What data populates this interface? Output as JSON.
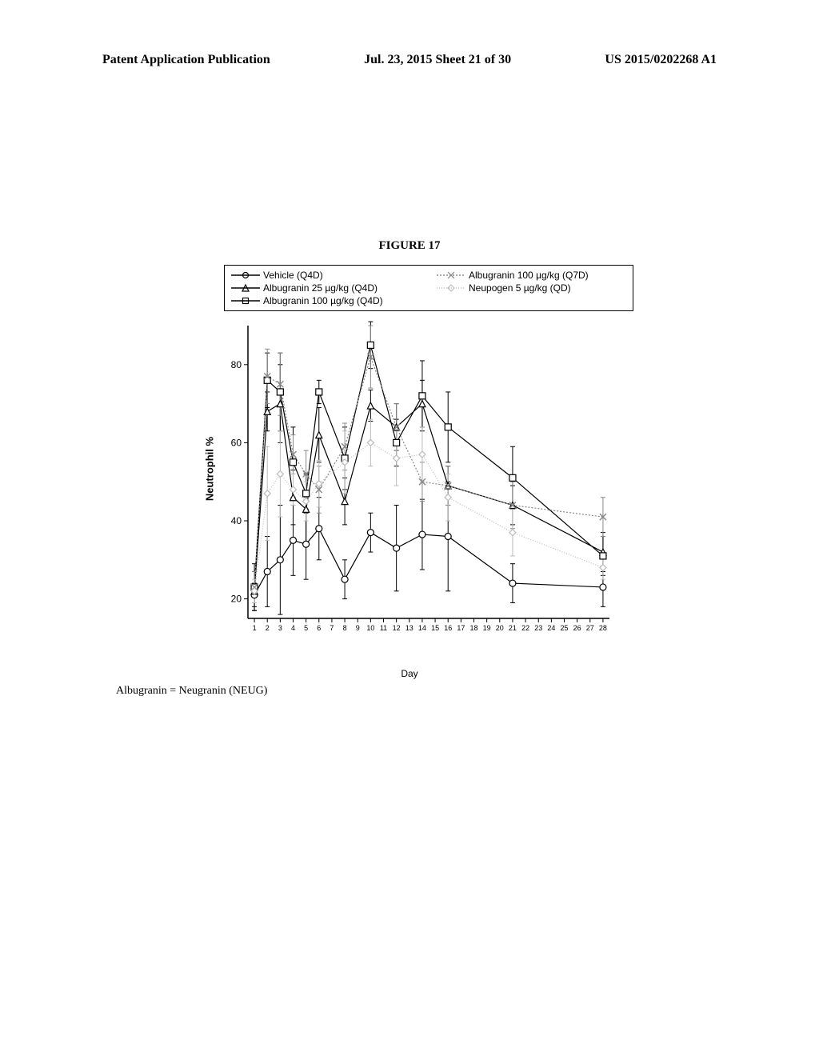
{
  "header": {
    "left": "Patent Application Publication",
    "center": "Jul. 23, 2015  Sheet 21 of 30",
    "right": "US 2015/0202268 A1"
  },
  "figure_title": "FIGURE 17",
  "footnote": "Albugranin = Neugranin (NEUG)",
  "chart": {
    "type": "line",
    "ylabel": "Neutrophil %",
    "xlabel": "Day",
    "ylim": [
      15,
      90
    ],
    "yticks": [
      20,
      40,
      60,
      80
    ],
    "xlim": [
      0.5,
      28.5
    ],
    "xticks": [
      1,
      2,
      3,
      4,
      5,
      6,
      7,
      8,
      9,
      10,
      11,
      12,
      13,
      14,
      15,
      16,
      17,
      18,
      19,
      20,
      21,
      22,
      23,
      24,
      25,
      26,
      27,
      28
    ],
    "axis_color": "#000000",
    "legend": {
      "position": "top",
      "border_color": "#000000"
    },
    "series": [
      {
        "name": "Vehicle (Q4D)",
        "marker": "circle",
        "color": "#000000",
        "fill": "none",
        "line_width": 1.2,
        "data": [
          {
            "x": 1,
            "y": 21,
            "err": 3
          },
          {
            "x": 2,
            "y": 27,
            "err": 9
          },
          {
            "x": 3,
            "y": 30,
            "err": 14
          },
          {
            "x": 4,
            "y": 35,
            "err": 9
          },
          {
            "x": 5,
            "y": 34,
            "err": 9
          },
          {
            "x": 6,
            "y": 38,
            "err": 8
          },
          {
            "x": 8,
            "y": 25,
            "err": 5
          },
          {
            "x": 10,
            "y": 37,
            "err": 5
          },
          {
            "x": 12,
            "y": 33,
            "err": 11
          },
          {
            "x": 14,
            "y": 36.5,
            "err": 9
          },
          {
            "x": 16,
            "y": 36,
            "err": 14
          },
          {
            "x": 21,
            "y": 24,
            "err": 5
          },
          {
            "x": 28,
            "y": 23,
            "err": 5
          }
        ]
      },
      {
        "name": "Albugranin 25 µg/kg (Q4D)",
        "marker": "triangle",
        "color": "#000000",
        "fill": "none",
        "line_width": 1.2,
        "data": [
          {
            "x": 1,
            "y": 22,
            "err": 5
          },
          {
            "x": 2,
            "y": 68,
            "err": 5
          },
          {
            "x": 3,
            "y": 70,
            "err": 10
          },
          {
            "x": 4,
            "y": 46,
            "err": 7
          },
          {
            "x": 5,
            "y": 43,
            "err": 9
          },
          {
            "x": 6,
            "y": 62,
            "err": 7
          },
          {
            "x": 8,
            "y": 45,
            "err": 6
          },
          {
            "x": 10,
            "y": 69.5,
            "err": 4
          },
          {
            "x": 12,
            "y": 64,
            "err": 6
          },
          {
            "x": 14,
            "y": 70,
            "err": 6
          },
          {
            "x": 16,
            "y": 49,
            "err": 5
          },
          {
            "x": 21,
            "y": 44,
            "err": 5
          },
          {
            "x": 28,
            "y": 32,
            "err": 5
          }
        ]
      },
      {
        "name": "Albugranin 100 µg/kg (Q4D)",
        "marker": "square",
        "color": "#000000",
        "fill": "none",
        "line_width": 1.2,
        "data": [
          {
            "x": 1,
            "y": 23,
            "err": 6
          },
          {
            "x": 2,
            "y": 76,
            "err": 7
          },
          {
            "x": 3,
            "y": 73,
            "err": 10
          },
          {
            "x": 4,
            "y": 55,
            "err": 9
          },
          {
            "x": 5,
            "y": 47,
            "err": 5
          },
          {
            "x": 6,
            "y": 73,
            "err": 3
          },
          {
            "x": 8,
            "y": 56,
            "err": 8
          },
          {
            "x": 10,
            "y": 85,
            "err": 6
          },
          {
            "x": 12,
            "y": 60,
            "err": 6
          },
          {
            "x": 14,
            "y": 72,
            "err": 9
          },
          {
            "x": 16,
            "y": 64,
            "err": 9
          },
          {
            "x": 21,
            "y": 51,
            "err": 8
          },
          {
            "x": 28,
            "y": 31,
            "err": 5
          }
        ]
      },
      {
        "name": "Albugranin 100 µg/kg (Q7D)",
        "marker": "x",
        "color": "#888888",
        "fill": "none",
        "dash": "2,2",
        "line_width": 1.2,
        "data": [
          {
            "x": 1,
            "y": 23,
            "err": 4
          },
          {
            "x": 2,
            "y": 77,
            "err": 7
          },
          {
            "x": 3,
            "y": 75,
            "err": 8
          },
          {
            "x": 4,
            "y": 57,
            "err": 5
          },
          {
            "x": 5,
            "y": 52,
            "err": 6
          },
          {
            "x": 6,
            "y": 48,
            "err": 6
          },
          {
            "x": 8,
            "y": 59,
            "err": 6
          },
          {
            "x": 10,
            "y": 82,
            "err": 8
          },
          {
            "x": 12,
            "y": 64,
            "err": 6
          },
          {
            "x": 14,
            "y": 50,
            "err": 5
          },
          {
            "x": 16,
            "y": 49,
            "err": 5
          },
          {
            "x": 21,
            "y": 44,
            "err": 6
          },
          {
            "x": 28,
            "y": 41,
            "err": 5
          }
        ]
      },
      {
        "name": "Neupogen 5 µg/kg (QD)",
        "marker": "diamond",
        "color": "#bbbbbb",
        "fill": "none",
        "dash": "1,2",
        "line_width": 1.2,
        "data": [
          {
            "x": 1,
            "y": 22,
            "err": 3
          },
          {
            "x": 2,
            "y": 47,
            "err": 12
          },
          {
            "x": 3,
            "y": 52,
            "err": 11
          },
          {
            "x": 4,
            "y": 48,
            "err": 4
          },
          {
            "x": 5,
            "y": 45,
            "err": 5
          },
          {
            "x": 6,
            "y": 49.5,
            "err": 6
          },
          {
            "x": 8,
            "y": 55,
            "err": 8
          },
          {
            "x": 10,
            "y": 60,
            "err": 6
          },
          {
            "x": 12,
            "y": 56,
            "err": 7
          },
          {
            "x": 14,
            "y": 57,
            "err": 7
          },
          {
            "x": 16,
            "y": 46,
            "err": 6
          },
          {
            "x": 21,
            "y": 37,
            "err": 6
          },
          {
            "x": 28,
            "y": 28,
            "err": 3
          }
        ]
      }
    ]
  }
}
